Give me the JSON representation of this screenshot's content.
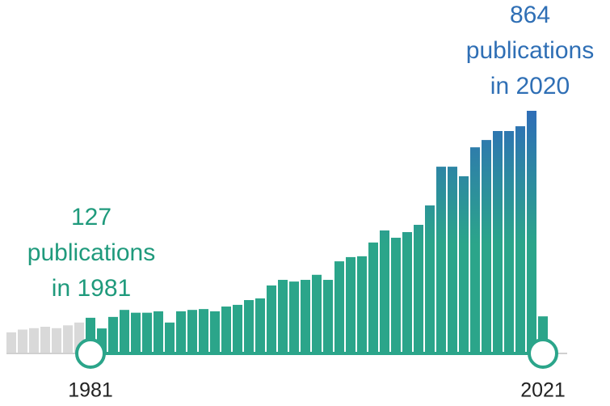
{
  "chart_data": {
    "type": "bar",
    "categories": [
      null,
      null,
      null,
      null,
      null,
      null,
      null,
      "1981",
      null,
      null,
      null,
      null,
      null,
      null,
      null,
      null,
      null,
      null,
      null,
      null,
      null,
      null,
      null,
      null,
      null,
      null,
      null,
      null,
      null,
      null,
      null,
      null,
      null,
      null,
      null,
      null,
      null,
      null,
      null,
      null,
      null,
      null,
      null,
      null,
      null,
      null,
      null,
      "2021"
    ],
    "series": [
      {
        "color": "#d9d9d9",
        "values": [
          75,
          85,
          90,
          95,
          90,
          100,
          110,
          null,
          null,
          null,
          null,
          null,
          null,
          null,
          null,
          null,
          null,
          null,
          null,
          null,
          null,
          null,
          null,
          null,
          null,
          null,
          null,
          null,
          null,
          null,
          null,
          null,
          null,
          null,
          null,
          null,
          null,
          null,
          null,
          null,
          null,
          null,
          null,
          null,
          null,
          null,
          null,
          null
        ]
      },
      {
        "color": "#2ba58a",
        "color_top": "#2f6eb7",
        "values": [
          null,
          null,
          null,
          null,
          null,
          null,
          null,
          127,
          89,
          130,
          155,
          145,
          145,
          150,
          110,
          150,
          155,
          158,
          150,
          167,
          173,
          190,
          196,
          242,
          262,
          256,
          262,
          280,
          262,
          328,
          343,
          346,
          395,
          438,
          412,
          432,
          458,
          527,
          665,
          665,
          631,
          734,
          760,
          792,
          792,
          809,
          864,
          132
        ]
      }
    ],
    "ylim": [
      0,
      900
    ],
    "annotations": [
      {
        "lines": [
          "127",
          "publications",
          "in 1981"
        ],
        "color": "#1f9a7c"
      },
      {
        "lines": [
          "864",
          "publications",
          "in 2020"
        ],
        "color": "#2f6fb5"
      }
    ]
  }
}
